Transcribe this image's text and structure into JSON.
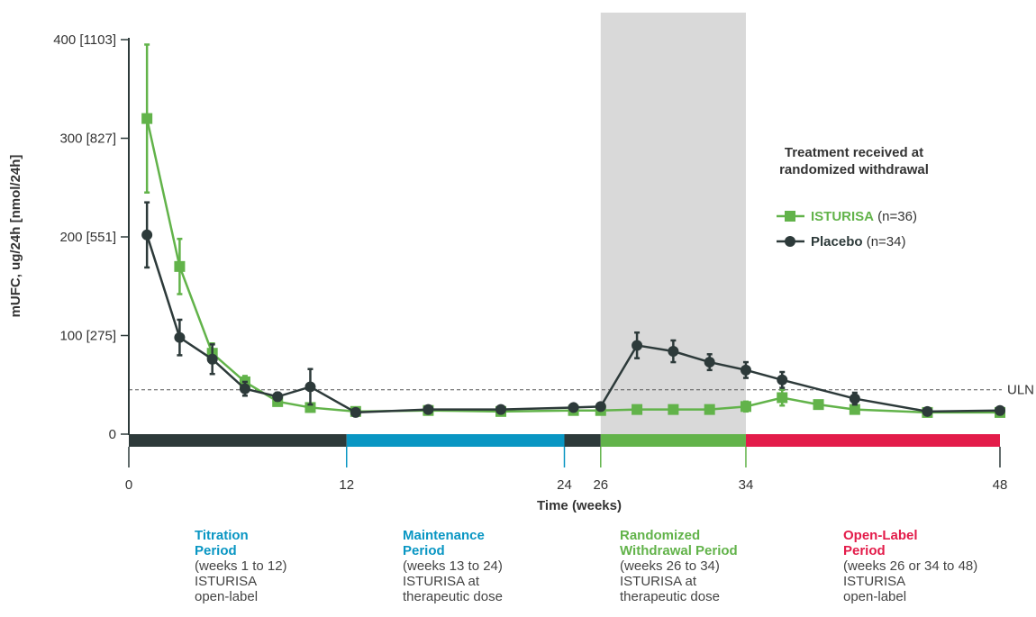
{
  "chart_data": {
    "type": "line",
    "xlabel": "Time (weeks)",
    "ylabel": "mUFC, ug/24h [nmol/24h]",
    "xlim": [
      0,
      48
    ],
    "ylim": [
      0,
      400
    ],
    "x_ticks": [
      {
        "value": 0,
        "label": "0"
      },
      {
        "value": 12,
        "label": "12"
      },
      {
        "value": 24,
        "label": "24"
      },
      {
        "value": 26,
        "label": "26"
      },
      {
        "value": 34,
        "label": "34"
      },
      {
        "value": 48,
        "label": "48"
      }
    ],
    "y_ticks": [
      {
        "value": 0,
        "label": "0"
      },
      {
        "value": 100,
        "label": "100 [275]"
      },
      {
        "value": 200,
        "label": "200 [551]"
      },
      {
        "value": 300,
        "label": "300 [827]"
      },
      {
        "value": 400,
        "label": "400 [1103]"
      }
    ],
    "reference_line": {
      "value": 45,
      "label": "ULN"
    },
    "shaded_region": {
      "x_start": 26,
      "x_end": 34,
      "color": "#d9d9d9"
    },
    "legend": {
      "title_line1": "Treatment received at",
      "title_line2": "randomized withdrawal",
      "placement": "right"
    },
    "series": [
      {
        "name": "ISTURISA",
        "n_label": "(n=36)",
        "color": "#62b34a",
        "marker": "square",
        "x": [
          1,
          2.8,
          4.6,
          6.4,
          8.2,
          10,
          12.5,
          16.5,
          20.5,
          24.5,
          26,
          28,
          30,
          32,
          34,
          36,
          38,
          40,
          44,
          48
        ],
        "y": [
          320,
          170,
          82,
          53,
          33,
          27,
          23,
          24,
          23,
          24,
          24,
          25,
          25,
          25,
          28,
          37,
          30,
          25,
          22,
          22
        ],
        "err": [
          75,
          28,
          10,
          6,
          4,
          4,
          3,
          3,
          3,
          3,
          3,
          3,
          3,
          3,
          5,
          8,
          4,
          3,
          2,
          2
        ]
      },
      {
        "name": "Placebo",
        "n_label": "(n=34)",
        "color": "#2d3a3a",
        "marker": "circle",
        "x": [
          1,
          2.8,
          4.6,
          6.4,
          8.2,
          10,
          12.5,
          16.5,
          20.5,
          24.5,
          26,
          28,
          30,
          32,
          34,
          36,
          40,
          44,
          48
        ],
        "y": [
          202,
          98,
          76,
          46,
          38,
          48,
          22,
          25,
          25,
          27,
          28,
          90,
          84,
          73,
          65,
          55,
          36,
          23,
          24
        ],
        "err": [
          33,
          18,
          15,
          7,
          4,
          18,
          3,
          3,
          3,
          3,
          3,
          13,
          11,
          8,
          8,
          8,
          6,
          2,
          2
        ]
      }
    ],
    "period_bar": [
      {
        "x_start": 0,
        "x_end": 12,
        "color": "#2d3a3a"
      },
      {
        "x_start": 12,
        "x_end": 24,
        "color": "#0996c3"
      },
      {
        "x_start": 24,
        "x_end": 26,
        "color": "#2d3a3a"
      },
      {
        "x_start": 26,
        "x_end": 34,
        "color": "#62b34a"
      },
      {
        "x_start": 34,
        "x_end": 48,
        "color": "#e31c4a"
      }
    ]
  },
  "periods": [
    {
      "name_line1": "Titration",
      "name_line2": "Period",
      "color": "#0996c3",
      "desc": "(weeks 1 to 12)\nISTURISA\nopen-label"
    },
    {
      "name_line1": "Maintenance",
      "name_line2": "Period",
      "color": "#0996c3",
      "desc": "(weeks 13 to 24)\nISTURISA at\ntherapeutic dose"
    },
    {
      "name_line1": "Randomized",
      "name_line2": "Withdrawal Period",
      "color": "#62b34a",
      "desc": "(weeks 26 to 34)\nISTURISA at\ntherapeutic dose"
    },
    {
      "name_line1": "Open-Label",
      "name_line2": "Period",
      "color": "#e31c4a",
      "desc": "(weeks 26 or 34 to 48)\nISTURISA\nopen-label"
    }
  ]
}
